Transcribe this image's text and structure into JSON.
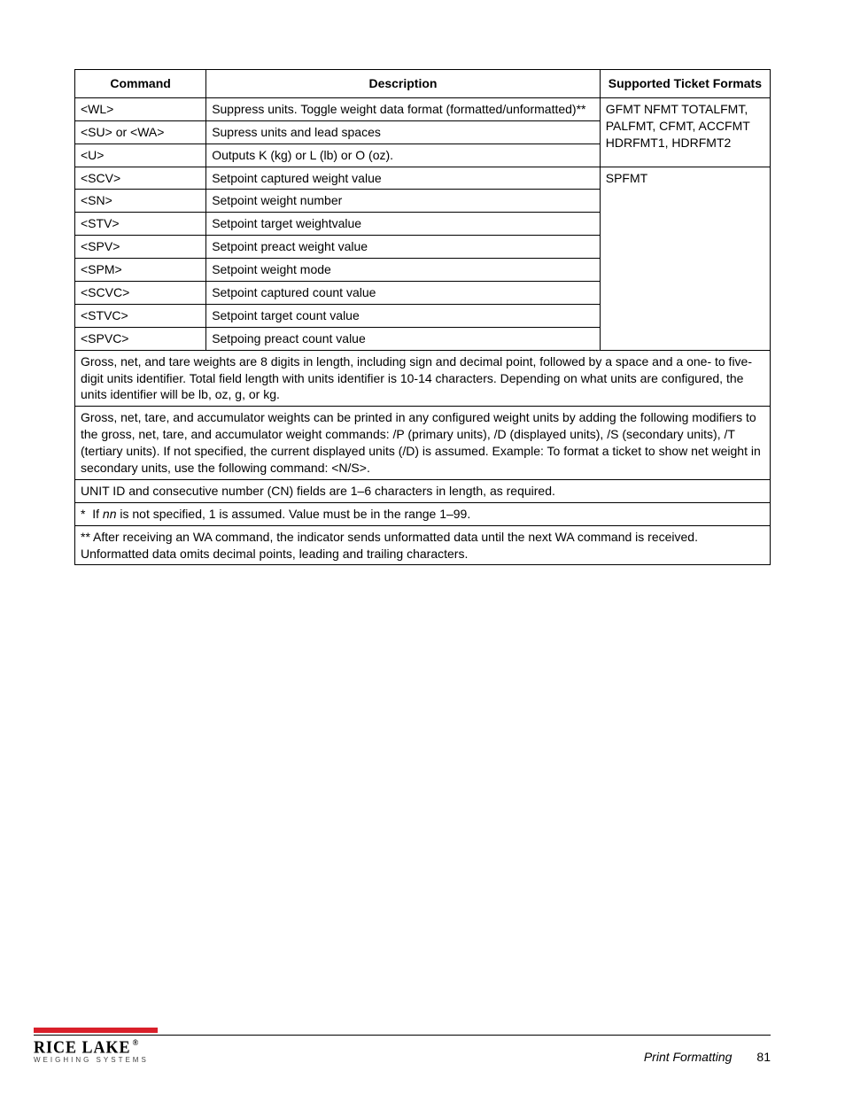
{
  "table": {
    "headers": [
      "Command",
      "Description",
      "Supported Ticket Formats"
    ],
    "group1_format": "GFMT NFMT TOTALFMT, PALFMT, CFMT, ACCFMT HDRFMT1, HDRFMT2",
    "group1_rows": [
      [
        "<WL>",
        "Suppress units.  Toggle weight data format (formatted/unformatted)**"
      ],
      [
        "<SU> or <WA>",
        "Supress units and lead spaces"
      ],
      [
        "<U>",
        "Outputs K (kg) or L (lb) or O (oz)."
      ]
    ],
    "group2_format": "SPFMT",
    "group2_rows": [
      [
        "<SCV>",
        "Setpoint captured weight value"
      ],
      [
        "<SN>",
        "Setpoint weight number"
      ],
      [
        "<STV>",
        "Setpoint target weightvalue"
      ],
      [
        "<SPV>",
        "Setpoint preact weight value"
      ],
      [
        "<SPM>",
        "Setpoint weight mode"
      ],
      [
        "<SCVC>",
        "Setpoint captured count value"
      ],
      [
        "<STVC>",
        "Setpoint target count value"
      ],
      [
        "<SPVC>",
        "Setpoing preact count value"
      ]
    ],
    "notes": [
      "Gross, net, and tare weights are 8 digits in length, including sign and decimal point, followed by a space and a one- to five-digit units identifier. Total field length with units identifier is 10-14 characters. Depending on what units are configured, the units identifier will be lb, oz, g, or kg.",
      "Gross, net, tare, and accumulator weights can be printed in any configured weight units by adding the following modifiers to the gross, net, tare, and accumulator weight commands: /P (primary units), /D (displayed units), /S (secondary units), /T (tertiary units). If not specified, the current displayed units (/D) is assumed. Example: To format a ticket to show net weight in secondary units, use the following command: <N/S>.",
      "UNIT ID and consecutive number (CN) fields are 1–6 characters in length, as required.",
      "*  If nn is not specified, 1 is assumed. Value must be in the range 1–99.",
      "**  After receiving an WA command, the indicator sends unformatted data until the next WA command is received. Unformatted data omits decimal points, leading and trailing characters."
    ]
  },
  "footer": {
    "brand_top": "RICE LAKE",
    "brand_sub": "WEIGHING SYSTEMS",
    "section": "Print Formatting",
    "page": "81"
  }
}
